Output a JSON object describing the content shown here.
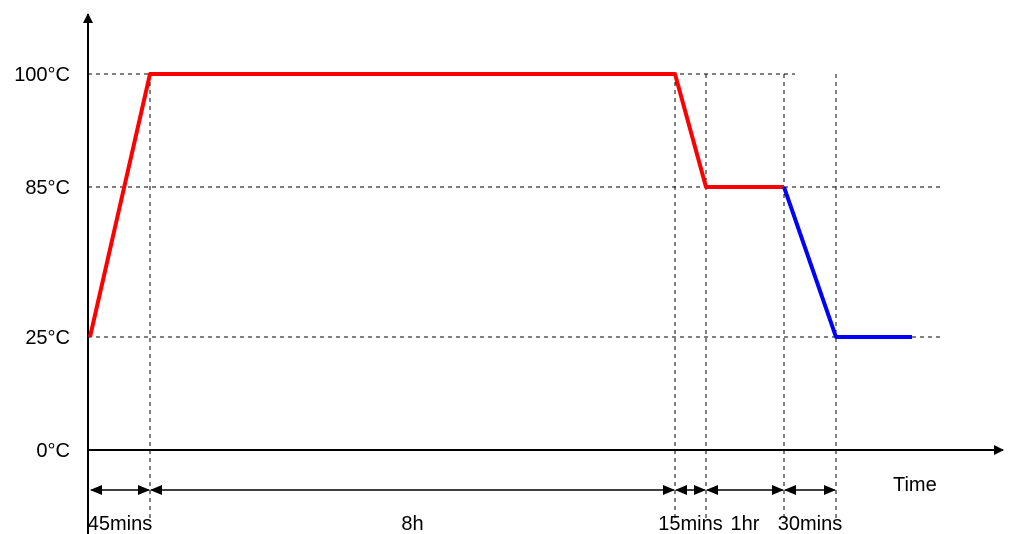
{
  "chart_data": {
    "type": "line",
    "title": "",
    "xlabel": "Time",
    "ylabel": "",
    "x_unit": "minutes",
    "y_unit": "°C",
    "ylim": [
      0,
      100
    ],
    "y_ticks": [
      {
        "value": 0,
        "label": "0°C",
        "guide": false
      },
      {
        "value": 25,
        "label": "25°C",
        "guide": true
      },
      {
        "value": 85,
        "label": "85°C",
        "guide": true
      },
      {
        "value": 100,
        "label": "100°C",
        "guide": true
      }
    ],
    "x_marks": [
      0,
      45,
      525,
      540,
      600,
      630
    ],
    "series": [
      {
        "color": "#ff0000",
        "points": [
          [
            0,
            25
          ],
          [
            45,
            100
          ],
          [
            525,
            100
          ],
          [
            540,
            85
          ],
          [
            600,
            85
          ]
        ]
      },
      {
        "color": "#0000ff",
        "points": [
          [
            600,
            85
          ],
          [
            630,
            25
          ],
          [
            675,
            25
          ]
        ]
      }
    ],
    "durations": [
      {
        "label": "45mins",
        "from": 0,
        "to": 45
      },
      {
        "label": "8h",
        "from": 45,
        "to": 525
      },
      {
        "label": "15mins",
        "from": 525,
        "to": 540
      },
      {
        "label": "1hr",
        "from": 540,
        "to": 600
      },
      {
        "label": "30mins",
        "from": 600,
        "to": 630
      }
    ],
    "grid": false,
    "legend": "none"
  }
}
